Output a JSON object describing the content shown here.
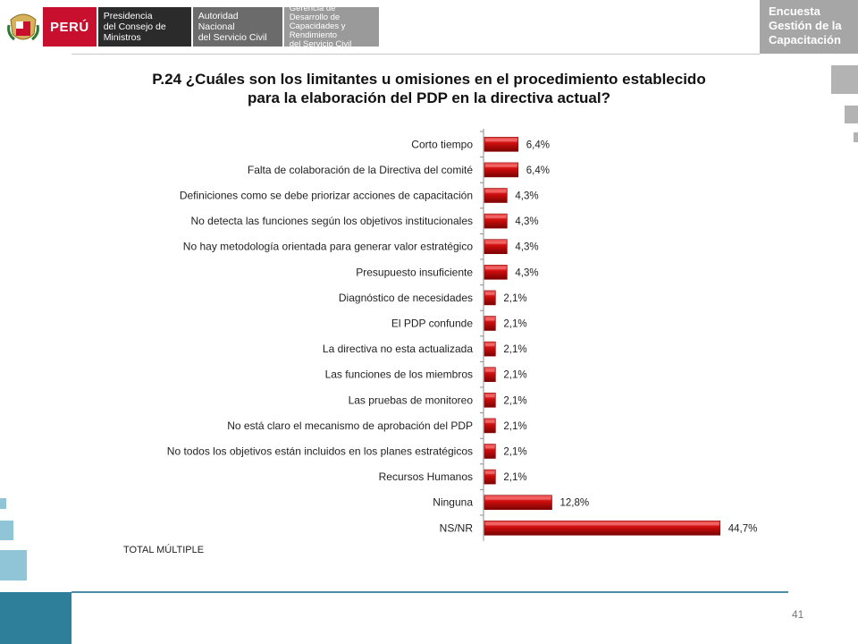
{
  "header": {
    "peru": "PERÚ",
    "inst1": [
      "Presidencia",
      "del Consejo de Ministros"
    ],
    "inst2": [
      "Autoridad Nacional",
      "del Servicio Civil"
    ],
    "inst3": [
      "Gerencia de Desarrollo de",
      "Capacidades y Rendimiento",
      "del Servicio Civil"
    ],
    "badge": [
      "Encuesta",
      "Gestión de la",
      "Capacitación"
    ]
  },
  "title_lines": [
    "P.24 ¿Cuáles son los limitantes u omisiones en el procedimiento establecido",
    "para la elaboración del PDP en la directiva actual?"
  ],
  "footer": {
    "total": "TOTAL MÚLTIPLE",
    "page": "41"
  },
  "colors": {
    "bar": "#cc0c0c",
    "bar_dark": "#8a0505",
    "bar_light": "#ee4a4a",
    "accent": "#2e7f9a"
  },
  "chart_data": {
    "type": "bar",
    "orientation": "horizontal",
    "categories": [
      "Corto tiempo",
      "Falta de colaboración de la Directiva del comité",
      "Definiciones como se debe priorizar acciones de capacitación",
      "No detecta las funciones según los objetivos institucionales",
      "No hay metodología orientada para generar valor estratégico",
      "Presupuesto insuficiente",
      "Diagnóstico de necesidades",
      "El PDP confunde",
      "La directiva no esta actualizada",
      "Las funciones de los miembros",
      "Las pruebas de monitoreo",
      "No está claro el mecanismo de aprobación del PDP",
      "No todos los objetivos están incluidos en los planes estratégicos",
      "Recursos Humanos",
      "Ninguna",
      "NS/NR"
    ],
    "values": [
      6.4,
      6.4,
      4.3,
      4.3,
      4.3,
      4.3,
      2.1,
      2.1,
      2.1,
      2.1,
      2.1,
      2.1,
      2.1,
      2.1,
      12.8,
      44.7
    ],
    "labels": [
      "6,4%",
      "6,4%",
      "4,3%",
      "4,3%",
      "4,3%",
      "4,3%",
      "2,1%",
      "2,1%",
      "2,1%",
      "2,1%",
      "2,1%",
      "2,1%",
      "2,1%",
      "2,1%",
      "12,8%",
      "44,7%"
    ],
    "unit": "%",
    "xlim": [
      0,
      50
    ],
    "grid": false,
    "legend": "none"
  }
}
